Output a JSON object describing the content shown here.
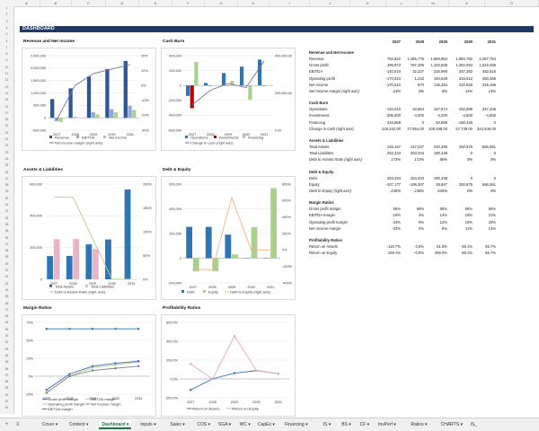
{
  "columns": [
    "A",
    "B",
    "C",
    "D",
    "E",
    "F",
    "G",
    "H",
    "I",
    "J",
    "K",
    "L",
    "M",
    "N",
    "O"
  ],
  "dashboard_title": "DASHBOARD",
  "chart_titles": {
    "c1": "Revenue and Net Income",
    "c2": "Cash Burn",
    "c3": "Assets & Liabilities",
    "c4": "Debt & Equity",
    "c5": "Margin Ratios",
    "c6": "Profitability Ratios"
  },
  "years": [
    "2027",
    "2028",
    "2029",
    "2030",
    "2031"
  ],
  "table": {
    "sections": [
      {
        "title": "Revenue and Net Income",
        "rows": [
          {
            "label": "Revenue",
            "values": [
              "752,822",
              "1,185,776",
              "1,659,954",
              "1,960,782",
              "2,287,754"
            ]
          },
          {
            "label": "Gross profit",
            "values": [
              "499,973",
              "787,406",
              "1,102,538",
              "1,302,094",
              "1,519,486"
            ]
          },
          {
            "label": "EBITDA",
            "values": [
              "-140,010",
              "32,227",
              "225,969",
              "347,382",
              "482,516"
            ]
          },
          {
            "label": "Operating profit",
            "values": [
              "-170,510",
              "1,242",
              "194,649",
              "315,612",
              "450,266"
            ]
          },
          {
            "label": "Net income",
            "values": [
              "-170,510",
              "870",
              "136,254",
              "220,928",
              "315,186"
            ]
          },
          {
            "label": "Net income margin (right axis)",
            "values": [
              "-23%",
              "0%",
              "8%",
              "11%",
              "14%"
            ],
            "italic": true
          }
        ]
      },
      {
        "title": "Cash Burn",
        "rows": [
          {
            "label": "Operations",
            "values": [
              "-140,010",
              "33,854",
              "167,574",
              "252,698",
              "347,436"
            ]
          },
          {
            "label": "Investments",
            "values": [
              "-305,000",
              "-4,000",
              "-4,200",
              "-4,500",
              "-4,800"
            ]
          },
          {
            "label": "Financing",
            "values": [
              "316,668",
              "0",
              "62,886",
              "-190,448",
              "0"
            ]
          },
          {
            "label": "Change in cash (right axis)",
            "values": [
              "-128,342.00",
              "27,854.00",
              "100,488.00",
              "57,749.00",
              "342,636.00"
            ]
          }
        ]
      },
      {
        "title": "Assets & Liabilities",
        "rows": [
          {
            "label": "Total Assets",
            "values": [
              "146,157",
              "147,027",
              "220,395",
              "250,875",
              "566,061"
            ]
          },
          {
            "label": "Total Liabilities",
            "values": [
              "253,334",
              "253,334",
              "190,448",
              "0",
              "0"
            ]
          },
          {
            "label": "Debt to Assets Ratio (right axis)",
            "values": [
              "173%",
              "172%",
              "86%",
              "0%",
              "0%"
            ],
            "italic": true
          }
        ]
      },
      {
        "title": "Debt & Equity",
        "rows": [
          {
            "label": "Debt",
            "values": [
              "253,334",
              "253,334",
              "190,448",
              "0",
              "0"
            ]
          },
          {
            "label": "Equity",
            "values": [
              "-107,177",
              "-106,307",
              "29,947",
              "250,875",
              "566,061"
            ]
          },
          {
            "label": "Debt to Equity (right axis)",
            "values": [
              "-236%",
              "-238%",
              "636%",
              "0%",
              "0%"
            ],
            "italic": true
          }
        ]
      },
      {
        "title": "Margin Ratios",
        "rows": [
          {
            "label": "Gross profit margin",
            "values": [
              "66%",
              "66%",
              "66%",
              "66%",
              "66%"
            ]
          },
          {
            "label": "EBITDA margin",
            "values": [
              "-19%",
              "3%",
              "14%",
              "18%",
              "21%"
            ]
          },
          {
            "label": "Operating profit margin",
            "values": [
              "-23%",
              "0%",
              "12%",
              "16%",
              "20%"
            ]
          },
          {
            "label": "Net income margin",
            "values": [
              "-23%",
              "0%",
              "8%",
              "11%",
              "14%"
            ]
          }
        ]
      },
      {
        "title": "Profitability Ratios",
        "rows": [
          {
            "label": "Return on Assets",
            "values": [
              "-116.7%",
              "0.6%",
              "61.8%",
              "88.1%",
              "55.7%"
            ]
          },
          {
            "label": "Return on Equity",
            "values": [
              "159.1%",
              "-0.8%",
              "455.0%",
              "88.1%",
              "55.7%"
            ]
          }
        ]
      }
    ]
  },
  "chart_data": [
    {
      "id": "c1",
      "type": "bar",
      "categories": [
        "2027",
        "2028",
        "2029",
        "2030",
        "2031"
      ],
      "series": [
        {
          "name": "Revenue",
          "values": [
            752822,
            1185776,
            1659954,
            1960782,
            2287754
          ],
          "color": "#2e5597"
        },
        {
          "name": "EBITDA",
          "values": [
            -140010,
            32227,
            225969,
            347382,
            482516
          ],
          "color": "#8eaadb"
        },
        {
          "name": "Net income",
          "values": [
            -170510,
            870,
            136254,
            220928,
            315186
          ],
          "color": "#a9d18e"
        },
        {
          "name": "Net income margin (right axis)",
          "values": [
            -23,
            0,
            8,
            11,
            14
          ],
          "kind": "line",
          "color": "#7f6aa5"
        }
      ],
      "ylim": [
        -500000,
        2500000
      ],
      "y2lim": [
        -30,
        20
      ],
      "yticks": [
        "2,500,000",
        "2,000,000",
        "1,500,000",
        "1,000,000",
        "500,000",
        "0",
        "-500,000"
      ],
      "y2ticks": [
        "20%",
        "10%",
        "0%",
        "-10%",
        "-20%",
        "-30%"
      ]
    },
    {
      "id": "c2",
      "type": "bar",
      "categories": [
        "2027",
        "2028",
        "2029",
        "2030",
        "2031"
      ],
      "series": [
        {
          "name": "Operations",
          "values": [
            -140010,
            33854,
            167574,
            252698,
            347436
          ],
          "color": "#2e75b6"
        },
        {
          "name": "Investments",
          "values": [
            -305000,
            -4000,
            -4200,
            -4500,
            -4800
          ],
          "color": "#c00000"
        },
        {
          "name": "Financing",
          "values": [
            316668,
            0,
            62886,
            -190448,
            0
          ],
          "color": "#a9d18e"
        },
        {
          "name": "Change in cash (right axis)",
          "values": [
            -128342,
            27854,
            100488,
            57749,
            342636
          ],
          "kind": "line",
          "color": "#7f6aa5"
        }
      ],
      "ylim": [
        -600000,
        400000
      ],
      "y2lim": [
        -400000,
        400000
      ],
      "yticks": [
        "400,000",
        "200,000",
        "0",
        "-200,000",
        "-400,000",
        "-600,000"
      ],
      "y2ticks": [
        "400,000.00",
        "200,000.00",
        "0.00"
      ]
    },
    {
      "id": "c3",
      "type": "bar",
      "categories": [
        "2027",
        "2028",
        "2029",
        "2030",
        "2031"
      ],
      "series": [
        {
          "name": "Total Assets",
          "values": [
            146157,
            147027,
            220395,
            250875,
            566061
          ],
          "color": "#2e75b6"
        },
        {
          "name": "Total Liabilities",
          "values": [
            253334,
            253334,
            190448,
            0,
            0
          ],
          "color": "#e8b4c8"
        },
        {
          "name": "Debt to Assets Ratio (right axis)",
          "values": [
            173,
            172,
            86,
            0,
            0
          ],
          "kind": "line",
          "color": "#a9d18e"
        }
      ],
      "ylim": [
        0,
        600000
      ],
      "y2lim": [
        0,
        200
      ],
      "yticks": [
        "600,000",
        "400,000",
        "200,000",
        "0"
      ],
      "y2ticks": [
        "200%",
        "150%",
        "100%",
        "50%",
        "0%"
      ]
    },
    {
      "id": "c4",
      "type": "bar",
      "categories": [
        "2027",
        "2028",
        "2029",
        "2030",
        "2031"
      ],
      "series": [
        {
          "name": "Debt",
          "values": [
            253334,
            253334,
            190448,
            0,
            0
          ],
          "color": "#2e75b6"
        },
        {
          "name": "Equity",
          "values": [
            -107177,
            -106307,
            29947,
            250875,
            566061
          ],
          "color": "#a9d18e"
        },
        {
          "name": "Debt to Equity (right axis)",
          "values": [
            -236,
            -238,
            636,
            0,
            0
          ],
          "kind": "line",
          "color": "#f4b183"
        }
      ],
      "ylim": [
        -200000,
        600000
      ],
      "y2lim": [
        -400,
        800
      ],
      "yticks": [
        "600,000",
        "400,000",
        "200,000",
        "0",
        "-200,000"
      ],
      "y2ticks": [
        "800%",
        "600%",
        "400%",
        "200%",
        "0%",
        "-200%",
        "-400%"
      ]
    },
    {
      "id": "c5",
      "type": "line",
      "categories": [
        "2027",
        "2028",
        "2029",
        "2030",
        "2031"
      ],
      "series": [
        {
          "name": "Gross profit margin",
          "values": [
            66,
            66,
            66,
            66,
            66
          ],
          "color": "#2e75b6"
        },
        {
          "name": "EBITDA margin",
          "values": [
            -19,
            3,
            14,
            18,
            21
          ],
          "color": "#f4b183"
        },
        {
          "name": "Operating profit margin",
          "values": [
            -23,
            0,
            12,
            16,
            20
          ],
          "color": "#a9d18e"
        },
        {
          "name": "Net income margin",
          "values": [
            -23,
            0,
            8,
            11,
            14
          ],
          "color": "#7f7f7f"
        },
        {
          "name": "EBITDA margin",
          "values": [
            -19,
            3,
            14,
            18,
            21
          ],
          "color": "#4472c4"
        }
      ],
      "ylim": [
        -25,
        75
      ],
      "yticks": [
        "75%",
        "50%",
        "25%",
        "0%",
        "-25%"
      ]
    },
    {
      "id": "c6",
      "type": "line",
      "categories": [
        "2027",
        "2028",
        "2029",
        "2030",
        "2031"
      ],
      "series": [
        {
          "name": "Return on Assets",
          "values": [
            -116.7,
            0.6,
            61.8,
            88.1,
            55.7
          ],
          "color": "#2e75b6"
        },
        {
          "name": "Return on Equity",
          "values": [
            159.1,
            -0.8,
            455.0,
            88.1,
            55.7
          ],
          "color": "#e8a0b8"
        }
      ],
      "ylim": [
        -200,
        600
      ],
      "yticks": [
        "600.0%",
        "400.0%",
        "200.0%",
        "0.0%",
        "-200.0%"
      ]
    }
  ],
  "tabs": [
    "Cover",
    "Content",
    "Dashboard",
    "Inputs",
    "Sales",
    "COS",
    "SGA",
    "WC",
    "CapEx",
    "Financing",
    "IS",
    "BS",
    "CF",
    "InvPerf",
    "Ratios",
    "CHARTS",
    "IS_"
  ],
  "active_tab": "Dashboard"
}
